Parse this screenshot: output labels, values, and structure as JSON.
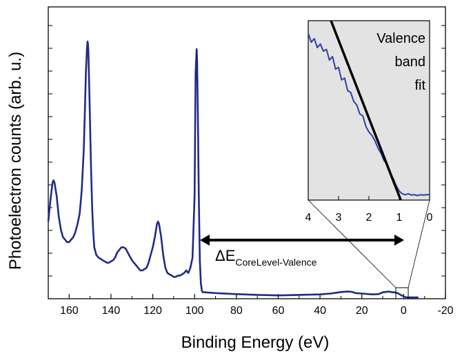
{
  "chart_data": [
    {
      "type": "line",
      "xlabel": "Binding Energy (eV)",
      "ylabel": "Photoelectron counts (arb. u.)",
      "xlim": [
        170,
        -20
      ],
      "x_reversed": true,
      "y_tick_labels_shown": false,
      "grid": false,
      "x_ticks": [
        160,
        140,
        120,
        100,
        80,
        60,
        40,
        20,
        0,
        -20
      ],
      "x_tick_labels": [
        "160",
        "140",
        "120",
        "100",
        "80",
        "60",
        "40",
        "20",
        "0",
        "-20"
      ],
      "series_color": "#1f2a85",
      "series": [
        {
          "x": [
            170,
            169,
            168,
            167.5,
            167,
            166,
            165,
            164,
            163,
            162,
            161,
            160,
            159,
            158,
            157,
            156,
            155,
            154,
            153,
            152.5,
            152,
            151.5,
            151.2,
            151,
            150.8,
            150.5,
            150,
            149.5,
            149,
            148.5,
            148,
            147,
            146,
            145,
            144,
            143,
            142,
            141,
            140,
            139,
            138,
            137,
            136,
            135,
            134,
            133,
            132,
            131,
            130,
            129,
            128,
            127,
            126,
            125,
            124,
            123,
            122,
            121,
            120,
            119,
            118,
            117.5,
            117,
            116,
            115,
            114,
            113,
            112,
            111,
            110,
            109,
            108,
            107,
            106,
            105,
            104,
            103,
            102,
            101,
            100,
            99.5,
            99,
            98.8,
            98.5,
            98,
            97.5,
            97,
            96.5,
            96,
            95,
            90,
            80,
            70,
            60,
            50,
            40,
            35,
            30,
            27,
            25,
            23,
            20,
            15,
            12,
            10,
            8,
            7,
            6,
            5,
            4,
            3,
            2,
            1,
            0,
            -1,
            -2,
            -3,
            -4,
            -5,
            -7
          ],
          "y": [
            0.3,
            0.38,
            0.45,
            0.46,
            0.45,
            0.4,
            0.32,
            0.27,
            0.24,
            0.23,
            0.22,
            0.22,
            0.23,
            0.24,
            0.26,
            0.29,
            0.33,
            0.42,
            0.58,
            0.73,
            0.88,
            0.97,
            1.0,
            0.99,
            0.96,
            0.86,
            0.68,
            0.5,
            0.35,
            0.26,
            0.2,
            0.17,
            0.16,
            0.155,
            0.15,
            0.145,
            0.14,
            0.14,
            0.145,
            0.15,
            0.16,
            0.18,
            0.19,
            0.2,
            0.2,
            0.195,
            0.18,
            0.165,
            0.15,
            0.14,
            0.13,
            0.12,
            0.11,
            0.11,
            0.115,
            0.12,
            0.14,
            0.17,
            0.2,
            0.24,
            0.29,
            0.3,
            0.29,
            0.24,
            0.17,
            0.12,
            0.1,
            0.095,
            0.09,
            0.085,
            0.085,
            0.09,
            0.09,
            0.095,
            0.1,
            0.11,
            0.1,
            0.12,
            0.16,
            0.4,
            0.88,
            0.97,
            0.93,
            0.75,
            0.4,
            0.15,
            0.06,
            0.03,
            0.025,
            0.025,
            0.022,
            0.018,
            0.015,
            0.013,
            0.015,
            0.017,
            0.02,
            0.026,
            0.028,
            0.027,
            0.022,
            0.02,
            0.017,
            0.018,
            0.025,
            0.027,
            0.028,
            0.026,
            0.025,
            0.024,
            0.022,
            0.018,
            0.013,
            0.009,
            0.006,
            0.005,
            0.005,
            0.005,
            0.005,
            0.005
          ]
        }
      ],
      "annotations": [
        "ΔE",
        "CoreLevel-Valence"
      ]
    },
    {
      "type": "line",
      "title": "Valence band fit",
      "xlim": [
        4,
        0
      ],
      "x_reversed": true,
      "x_ticks": [
        4,
        3,
        2,
        1,
        0
      ],
      "x_tick_labels": [
        "4",
        "3",
        "2",
        "1",
        "0"
      ],
      "background": "#e3e3e3",
      "data_color": "#2b3fa6",
      "fit_color": "#000000",
      "series": [
        {
          "x": [
            4.0,
            3.9,
            3.8,
            3.7,
            3.6,
            3.5,
            3.4,
            3.3,
            3.2,
            3.1,
            3.0,
            2.9,
            2.8,
            2.7,
            2.6,
            2.5,
            2.4,
            2.3,
            2.2,
            2.1,
            2.0,
            1.9,
            1.8,
            1.7,
            1.6,
            1.5,
            1.4,
            1.3,
            1.2,
            1.1,
            1.0,
            0.9,
            0.8,
            0.7,
            0.6,
            0.5,
            0.4,
            0.3,
            0.2,
            0.1,
            0.0
          ],
          "y": [
            0.93,
            0.88,
            0.9,
            0.85,
            0.87,
            0.83,
            0.84,
            0.78,
            0.8,
            0.73,
            0.74,
            0.67,
            0.68,
            0.61,
            0.6,
            0.55,
            0.53,
            0.48,
            0.47,
            0.41,
            0.38,
            0.36,
            0.33,
            0.29,
            0.26,
            0.22,
            0.2,
            0.15,
            0.12,
            0.08,
            0.05,
            0.035,
            0.03,
            0.035,
            0.028,
            0.03,
            0.025,
            0.03,
            0.028,
            0.03,
            0.03
          ]
        },
        {
          "x": [
            3.25,
            0.95
          ],
          "y": [
            1.0,
            0.0
          ]
        }
      ]
    }
  ]
}
